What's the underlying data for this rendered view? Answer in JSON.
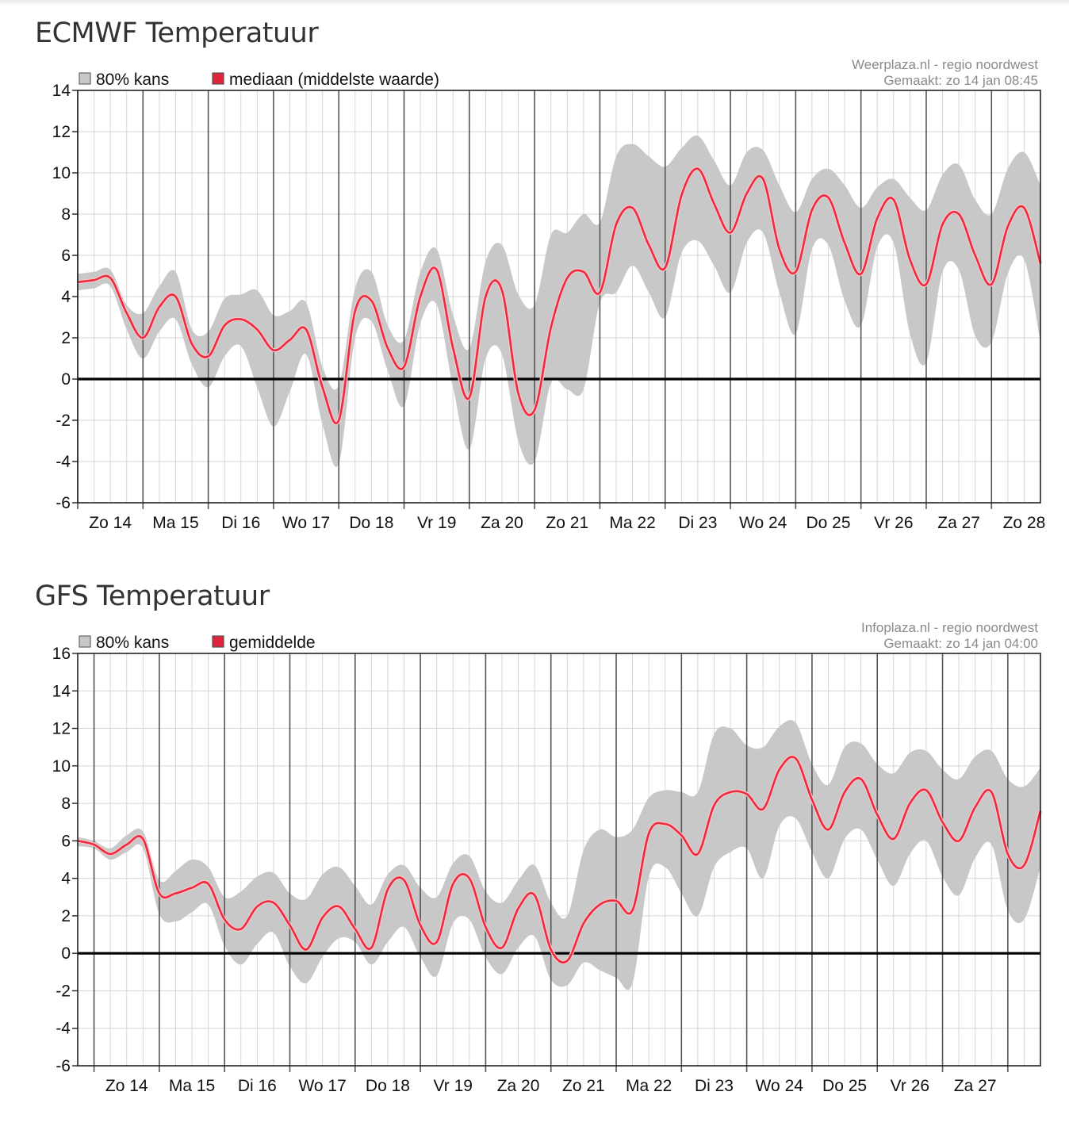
{
  "ecmwf": {
    "title": "ECMWF Temperatuur",
    "credit_line1": "Weerplaza.nl - regio noordwest",
    "credit_line2": "Gemaakt: zo 14 jan 08:45",
    "legend_band": "80% kans",
    "legend_line": "mediaan (middelste waarde)"
  },
  "gfs": {
    "title": "GFS Temperatuur",
    "credit_line1": "Infoplaza.nl - regio noordwest",
    "credit_line2": "Gemaakt: zo 14 jan 04:00",
    "legend_band": "80% kans",
    "legend_line": "gemiddelde"
  },
  "colors": {
    "band": "#c8c8c8",
    "line": "#ee2b3e",
    "legend_line_swatch": "#e0243a",
    "zero_line": "#000000",
    "grid": "#d6d6d6",
    "day_line": "#555555"
  },
  "chart_data": [
    {
      "type": "area",
      "id": "ecmwf",
      "title": "ECMWF Temperatuur",
      "ylim": [
        -6,
        14
      ],
      "yticks": [
        -6,
        -4,
        -2,
        0,
        2,
        4,
        6,
        8,
        10,
        12,
        14
      ],
      "x_unit": "hours since Zo 14 00:00",
      "xlim": [
        0,
        354
      ],
      "day_labels": [
        "Zo 14",
        "Ma 15",
        "Di 16",
        "Wo 17",
        "Do 18",
        "Vr 19",
        "Za 20",
        "Zo 21",
        "Ma 22",
        "Di 23",
        "Wo 24",
        "Do 25",
        "Vr 26",
        "Za 27",
        "Zo 28"
      ],
      "series": [
        {
          "name": "mediaan (middelste waarde)",
          "x": [
            0,
            6,
            12,
            18,
            24,
            30,
            36,
            42,
            48,
            54,
            60,
            66,
            72,
            78,
            84,
            90,
            96,
            102,
            108,
            114,
            120,
            126,
            132,
            138,
            144,
            150,
            156,
            162,
            168,
            174,
            180,
            186,
            192,
            198,
            204,
            210,
            216,
            222,
            228,
            234,
            240,
            246,
            252,
            258,
            264,
            270,
            276,
            282,
            288,
            294,
            300,
            306,
            312,
            318,
            324,
            330,
            336,
            342,
            348,
            354
          ],
          "values": [
            4.7,
            4.8,
            4.9,
            3.2,
            2.0,
            3.5,
            4.0,
            1.7,
            1.1,
            2.6,
            2.9,
            2.4,
            1.4,
            1.9,
            2.4,
            -0.4,
            -2.0,
            3.3,
            3.8,
            1.5,
            0.6,
            4.0,
            5.3,
            1.5,
            -0.9,
            4.0,
            4.3,
            -0.7,
            -1.5,
            2.5,
            4.9,
            5.2,
            4.2,
            7.5,
            8.3,
            6.5,
            5.4,
            8.9,
            10.2,
            8.5,
            7.1,
            9.0,
            9.7,
            6.3,
            5.2,
            8.2,
            8.8,
            6.6,
            5.1,
            7.8,
            8.7,
            5.8,
            4.6,
            7.5,
            8.0,
            6.0,
            4.6,
            7.4,
            8.3,
            5.6
          ]
        },
        {
          "name": "80% kans",
          "x": [
            0,
            6,
            12,
            18,
            24,
            30,
            36,
            42,
            48,
            54,
            60,
            66,
            72,
            78,
            84,
            90,
            96,
            102,
            108,
            114,
            120,
            126,
            132,
            138,
            144,
            150,
            156,
            162,
            168,
            174,
            180,
            186,
            192,
            198,
            204,
            210,
            216,
            222,
            228,
            234,
            240,
            246,
            252,
            258,
            264,
            270,
            276,
            282,
            288,
            294,
            300,
            306,
            312,
            318,
            324,
            330,
            336,
            342,
            348,
            354
          ],
          "upper": [
            5.1,
            5.2,
            5.3,
            3.6,
            3.2,
            4.5,
            5.2,
            2.4,
            2.3,
            3.9,
            4.1,
            4.3,
            3.1,
            3.3,
            3.7,
            0.6,
            -0.3,
            4.4,
            5.2,
            2.6,
            1.9,
            5.2,
            6.3,
            3.1,
            1.5,
            5.7,
            6.5,
            4.1,
            3.6,
            7.0,
            7.1,
            8.0,
            7.6,
            10.8,
            11.4,
            10.8,
            10.3,
            11.2,
            11.8,
            10.6,
            9.4,
            11.0,
            11.1,
            9.4,
            8.1,
            9.7,
            10.2,
            9.4,
            8.3,
            9.3,
            9.7,
            8.8,
            8.2,
            9.9,
            10.4,
            8.7,
            8.0,
            10.2,
            11.0,
            9.4
          ],
          "lower": [
            4.3,
            4.4,
            4.5,
            2.4,
            1.0,
            2.3,
            2.9,
            0.7,
            -0.4,
            1.1,
            1.6,
            -0.4,
            -2.3,
            -0.6,
            1.2,
            -2.2,
            -4.1,
            2.0,
            2.8,
            0.4,
            -1.3,
            2.7,
            3.6,
            -0.4,
            -3.4,
            1.0,
            1.2,
            -3.0,
            -4.0,
            -0.2,
            -0.5,
            -0.5,
            3.7,
            4.2,
            5.5,
            4.2,
            3.0,
            6.1,
            6.7,
            5.5,
            4.2,
            6.6,
            7.1,
            4.2,
            2.2,
            6.3,
            6.5,
            3.8,
            2.6,
            6.4,
            6.6,
            2.2,
            0.8,
            5.2,
            5.3,
            2.1,
            1.8,
            5.1,
            5.8,
            1.8
          ]
        }
      ]
    },
    {
      "type": "area",
      "id": "gfs",
      "title": "GFS Temperatuur",
      "ylim": [
        -6,
        16
      ],
      "yticks": [
        -6,
        -4,
        -2,
        0,
        2,
        4,
        6,
        8,
        10,
        12,
        14,
        16
      ],
      "x_unit": "hours since Zo 14 00:00",
      "xlim": [
        -6,
        348
      ],
      "day_labels": [
        "Zo 14",
        "Ma 15",
        "Di 16",
        "Wo 17",
        "Do 18",
        "Vr 19",
        "Za 20",
        "Zo 21",
        "Ma 22",
        "Di 23",
        "Wo 24",
        "Do 25",
        "Vr 26",
        "Za 27"
      ],
      "series": [
        {
          "name": "gemiddelde",
          "x": [
            -6,
            0,
            6,
            12,
            18,
            24,
            30,
            36,
            42,
            48,
            54,
            60,
            66,
            72,
            78,
            84,
            90,
            96,
            102,
            108,
            114,
            120,
            126,
            132,
            138,
            144,
            150,
            156,
            162,
            168,
            174,
            180,
            186,
            192,
            198,
            204,
            210,
            216,
            222,
            228,
            234,
            240,
            246,
            252,
            258,
            264,
            270,
            276,
            282,
            288,
            294,
            300,
            306,
            312,
            318,
            324,
            330,
            336,
            342,
            348
          ],
          "values": [
            6.0,
            5.8,
            5.3,
            5.8,
            6.1,
            3.2,
            3.2,
            3.5,
            3.7,
            1.8,
            1.3,
            2.5,
            2.7,
            1.5,
            0.2,
            1.9,
            2.5,
            1.3,
            0.3,
            3.4,
            3.9,
            1.5,
            0.6,
            3.7,
            4.0,
            1.4,
            0.3,
            2.4,
            3.1,
            0.2,
            -0.4,
            1.6,
            2.6,
            2.8,
            2.3,
            6.4,
            6.9,
            6.3,
            5.3,
            7.9,
            8.6,
            8.5,
            7.7,
            9.8,
            10.4,
            8.2,
            6.6,
            8.6,
            9.3,
            7.4,
            6.1,
            8.0,
            8.7,
            7.0,
            6.0,
            7.8,
            8.6,
            5.3,
            4.7,
            7.6
          ]
        },
        {
          "name": "80% kans",
          "x": [
            -6,
            0,
            6,
            12,
            18,
            24,
            30,
            36,
            42,
            48,
            54,
            60,
            66,
            72,
            78,
            84,
            90,
            96,
            102,
            108,
            114,
            120,
            126,
            132,
            138,
            144,
            150,
            156,
            162,
            168,
            174,
            180,
            186,
            192,
            198,
            204,
            210,
            216,
            222,
            228,
            234,
            240,
            246,
            252,
            258,
            264,
            270,
            276,
            282,
            288,
            294,
            300,
            306,
            312,
            318,
            324,
            330,
            336,
            342,
            348
          ],
          "upper": [
            6.2,
            6.0,
            5.6,
            6.3,
            6.5,
            3.9,
            4.4,
            5.0,
            4.6,
            3.0,
            3.3,
            4.1,
            4.3,
            3.2,
            2.9,
            4.2,
            4.6,
            3.6,
            2.6,
            4.2,
            4.7,
            3.5,
            3.0,
            4.8,
            5.2,
            3.3,
            2.7,
            3.9,
            4.7,
            2.7,
            2.0,
            5.5,
            6.6,
            6.2,
            6.6,
            8.3,
            8.7,
            8.6,
            8.6,
            11.7,
            12.0,
            11.1,
            11.0,
            12.1,
            12.3,
            10.1,
            9.0,
            11.0,
            11.2,
            10.1,
            9.6,
            10.7,
            10.8,
            9.8,
            9.3,
            10.5,
            10.8,
            9.3,
            8.9,
            9.9
          ],
          "lower": [
            5.7,
            5.6,
            5.0,
            5.4,
            5.6,
            2.1,
            1.7,
            2.2,
            2.6,
            0.4,
            -0.6,
            0.5,
            1.1,
            -0.7,
            -1.6,
            -0.2,
            0.8,
            0.6,
            -0.6,
            0.6,
            1.4,
            -0.2,
            -1.2,
            1.6,
            1.8,
            -0.2,
            -1.1,
            0.3,
            0.9,
            -1.4,
            -1.7,
            -0.5,
            -0.9,
            -1.3,
            -1.6,
            4.1,
            4.6,
            3.2,
            2.0,
            4.6,
            5.4,
            5.6,
            4.0,
            6.8,
            7.2,
            5.4,
            4.0,
            6.1,
            6.6,
            5.0,
            3.6,
            5.3,
            6.0,
            4.1,
            3.1,
            5.1,
            5.8,
            2.3,
            1.8,
            4.6
          ]
        }
      ]
    }
  ]
}
